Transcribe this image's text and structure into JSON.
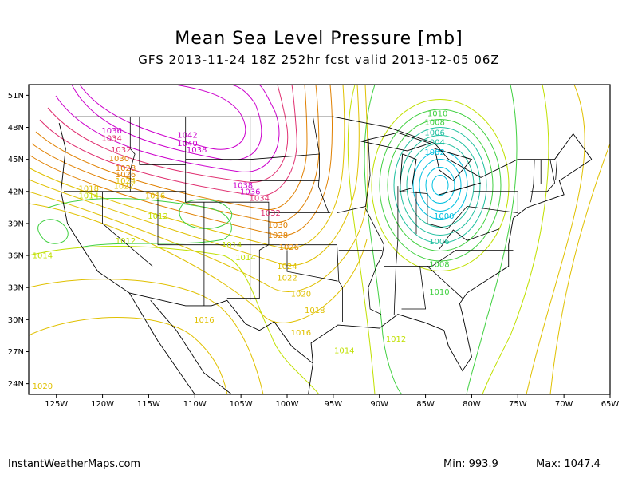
{
  "title": "Mean Sea Level Pressure [mb]",
  "subtitle": "GFS 2013-11-24 18Z 252hr fcst valid 2013-12-05 06Z",
  "credit": "InstantWeatherMaps.com",
  "min_label": "Min:",
  "min_value": "993.9",
  "max_label": "Max:",
  "max_value": "1047.4",
  "map": {
    "lon_range": [
      -128,
      -65
    ],
    "lat_range": [
      23,
      52
    ],
    "lat_ticks": [
      "51N",
      "48N",
      "45N",
      "42N",
      "39N",
      "36N",
      "33N",
      "30N",
      "27N",
      "24N"
    ],
    "lat_values": [
      51,
      48,
      45,
      42,
      39,
      36,
      33,
      30,
      27,
      24
    ],
    "lon_ticks": [
      "125W",
      "120W",
      "115W",
      "110W",
      "105W",
      "100W",
      "95W",
      "90W",
      "85W",
      "80W",
      "75W",
      "70W",
      "65W"
    ],
    "lon_values": [
      -125,
      -120,
      -115,
      -110,
      -105,
      -100,
      -95,
      -90,
      -85,
      -80,
      -75,
      -70,
      -65
    ],
    "contour_labels": [
      {
        "text": "1010",
        "lon": -83.7,
        "lat": 49.3
      },
      {
        "text": "1008",
        "lon": -84.0,
        "lat": 48.5
      },
      {
        "text": "1006",
        "lon": -84.0,
        "lat": 47.5
      },
      {
        "text": "1004",
        "lon": -84.0,
        "lat": 46.6
      },
      {
        "text": "1002",
        "lon": -84.0,
        "lat": 45.7
      },
      {
        "text": "1000",
        "lon": -83.0,
        "lat": 39.7
      },
      {
        "text": "1006",
        "lon": -83.5,
        "lat": 37.3
      },
      {
        "text": "1008",
        "lon": -83.5,
        "lat": 35.2
      },
      {
        "text": "1010",
        "lon": -83.5,
        "lat": 32.6
      },
      {
        "text": "1012",
        "lon": -88.2,
        "lat": 28.2
      },
      {
        "text": "1036",
        "lon": -119.0,
        "lat": 47.7
      },
      {
        "text": "1034",
        "lon": -119.0,
        "lat": 47.0
      },
      {
        "text": "1032",
        "lon": -118.0,
        "lat": 45.9
      },
      {
        "text": "1030",
        "lon": -118.2,
        "lat": 45.1
      },
      {
        "text": "1028",
        "lon": -117.5,
        "lat": 44.2
      },
      {
        "text": "1026",
        "lon": -117.5,
        "lat": 43.6
      },
      {
        "text": "1024",
        "lon": -117.5,
        "lat": 43.0
      },
      {
        "text": "1022",
        "lon": -117.7,
        "lat": 42.5
      },
      {
        "text": "1018",
        "lon": -121.5,
        "lat": 42.3
      },
      {
        "text": "1016",
        "lon": -114.3,
        "lat": 41.6
      },
      {
        "text": "1014",
        "lon": -121.5,
        "lat": 41.6
      },
      {
        "text": "1042",
        "lon": -110.8,
        "lat": 47.3
      },
      {
        "text": "1040",
        "lon": -110.8,
        "lat": 46.5
      },
      {
        "text": "1038",
        "lon": -109.8,
        "lat": 45.9
      },
      {
        "text": "1038",
        "lon": -104.8,
        "lat": 42.6
      },
      {
        "text": "1036",
        "lon": -104.0,
        "lat": 42.0
      },
      {
        "text": "1034",
        "lon": -103.0,
        "lat": 41.4
      },
      {
        "text": "1032",
        "lon": -101.8,
        "lat": 40.0
      },
      {
        "text": "1030",
        "lon": -101.0,
        "lat": 38.9
      },
      {
        "text": "1028",
        "lon": -101.0,
        "lat": 37.9
      },
      {
        "text": "1026",
        "lon": -99.8,
        "lat": 36.8
      },
      {
        "text": "1024",
        "lon": -100.0,
        "lat": 35.0
      },
      {
        "text": "1022",
        "lon": -100.0,
        "lat": 33.9
      },
      {
        "text": "1020",
        "lon": -98.5,
        "lat": 32.4
      },
      {
        "text": "1018",
        "lon": -97.0,
        "lat": 30.9
      },
      {
        "text": "1016",
        "lon": -98.5,
        "lat": 28.8
      },
      {
        "text": "1014",
        "lon": -93.8,
        "lat": 27.1
      },
      {
        "text": "1016",
        "lon": -109.0,
        "lat": 30.0
      },
      {
        "text": "1012",
        "lon": -114.0,
        "lat": 39.7
      },
      {
        "text": "1012",
        "lon": -117.5,
        "lat": 37.4
      },
      {
        "text": "1014",
        "lon": -106.0,
        "lat": 37.0
      },
      {
        "text": "1014",
        "lon": -104.5,
        "lat": 35.8
      },
      {
        "text": "1014",
        "lon": -126.5,
        "lat": 36.0
      },
      {
        "text": "1020",
        "lon": -126.5,
        "lat": 23.8
      }
    ],
    "line_colors": {
      "very_high": "#cc00cc",
      "high": "#e03070",
      "mid_high": "#e08000",
      "mid": "#e0c000",
      "normal": "#c0e000",
      "low_mid": "#40d040",
      "low": "#20c0a0",
      "very_low": "#00c0e0",
      "border": "#000000"
    }
  }
}
